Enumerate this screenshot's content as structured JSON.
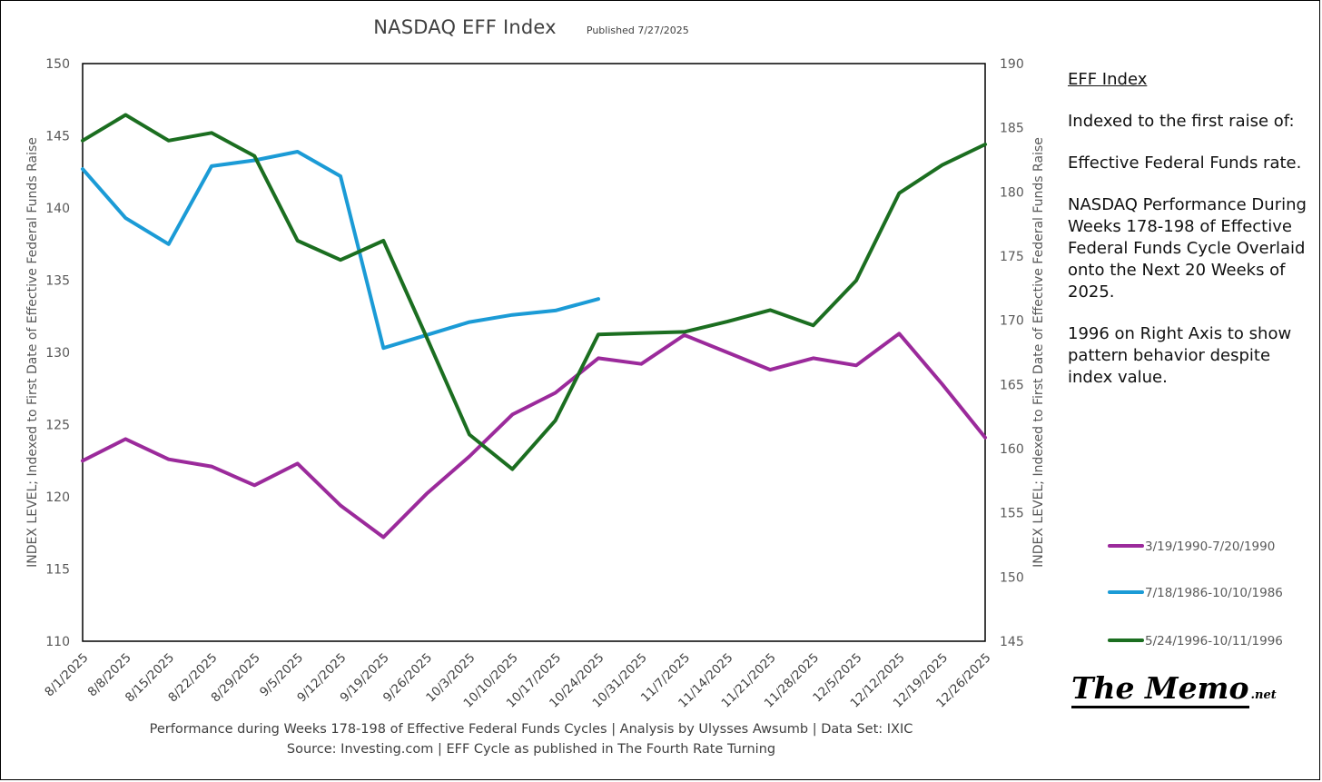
{
  "header": {
    "title": "NASDAQ EFF Index",
    "published": "Published 7/27/2025"
  },
  "sidebar": {
    "heading": "EFF Index",
    "para1": "Indexed to the first raise of:",
    "para2": "Effective Federal Funds rate.",
    "para3": "NASDAQ Performance During Weeks 178-198 of Effective Federal Funds Cycle Overlaid onto the Next 20 Weeks of 2025.",
    "para4": "1996 on Right Axis to show pattern behavior despite index value."
  },
  "footer": {
    "line1": "Performance during Weeks 178-198 of Effective Federal Funds Cycles  |  Analysis  by Ulysses Awsumb  |  Data Set: IXIC",
    "line2": "Source: Investing.com  |  EFF Cycle as published in The Fourth Rate Turning"
  },
  "logo": {
    "main": "The Memo",
    "suffix": ".net"
  },
  "chart_data": {
    "type": "line",
    "title": "NASDAQ EFF Index",
    "ylabel": "INDEX LEVEL; Indexed to First Date of Effective Federal Funds Raise",
    "y2label": "INDEX LEVEL; Indexed to First Date of Effective Federal Funds Raise",
    "ylim": [
      110,
      150
    ],
    "y2lim": [
      145,
      190
    ],
    "yticks": [
      110,
      115,
      120,
      125,
      130,
      135,
      140,
      145,
      150
    ],
    "y2ticks": [
      145,
      150,
      155,
      160,
      165,
      170,
      175,
      180,
      185,
      190
    ],
    "categories": [
      "8/1/2025",
      "8/8/2025",
      "8/15/2025",
      "8/22/2025",
      "8/29/2025",
      "9/5/2025",
      "9/12/2025",
      "9/19/2025",
      "9/26/2025",
      "10/3/2025",
      "10/10/2025",
      "10/17/2025",
      "10/24/2025",
      "10/31/2025",
      "11/7/2025",
      "11/14/2025",
      "11/21/2025",
      "11/28/2025",
      "12/5/2025",
      "12/12/2025",
      "12/19/2025",
      "12/26/2025"
    ],
    "legend_position": "right",
    "series": [
      {
        "name": "3/19/1990-7/20/1990",
        "color": "#9b2a9b",
        "axis": "left",
        "values": [
          122.5,
          124.0,
          122.6,
          122.1,
          120.8,
          122.3,
          119.4,
          117.2,
          120.2,
          122.8,
          125.7,
          127.2,
          129.6,
          129.2,
          131.2,
          130.0,
          128.8,
          129.6,
          129.1,
          131.3,
          127.8,
          124.1
        ]
      },
      {
        "name": "7/18/1986-10/10/1986",
        "color": "#1b9bd6",
        "axis": "left",
        "values": [
          142.7,
          139.3,
          137.5,
          142.9,
          143.3,
          143.9,
          142.2,
          130.3,
          131.2,
          132.1,
          132.6,
          132.9,
          133.7,
          null,
          null,
          null,
          null,
          null,
          null,
          null,
          null,
          null
        ]
      },
      {
        "name": "5/24/1996-10/11/1996",
        "color": "#1b6e20",
        "axis": "right",
        "values": [
          184.0,
          186.0,
          184.0,
          184.6,
          182.8,
          176.2,
          174.7,
          176.2,
          168.7,
          161.1,
          158.4,
          162.2,
          168.9,
          169.0,
          169.1,
          169.9,
          170.8,
          169.6,
          173.1,
          179.9,
          182.1,
          183.7
        ]
      }
    ]
  }
}
